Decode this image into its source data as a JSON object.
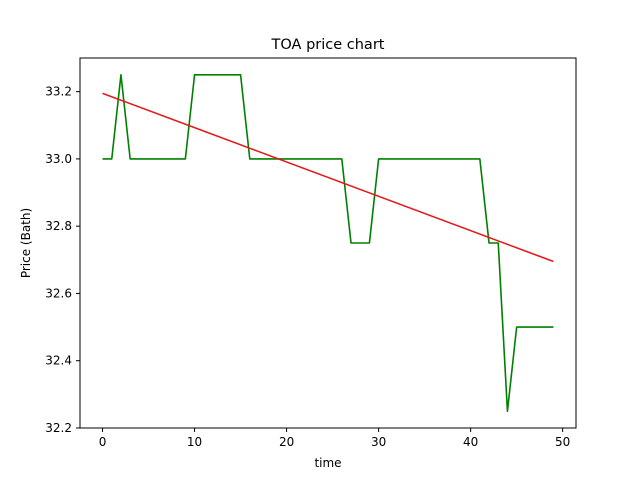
{
  "chart_data": {
    "type": "line",
    "title": "TOA price chart",
    "xlabel": "time",
    "ylabel": "Price (Bath)",
    "xlim": [
      -2.45,
      51.45
    ],
    "ylim": [
      32.2,
      33.3
    ],
    "xticks": [
      0,
      10,
      20,
      30,
      40,
      50
    ],
    "yticks": [
      32.2,
      32.4,
      32.6,
      32.8,
      33.0,
      33.2
    ],
    "ytick_labels": [
      "32.2",
      "32.4",
      "32.6",
      "32.8",
      "33.0",
      "33.2"
    ],
    "grid": false,
    "series": [
      {
        "color": "#008000",
        "x": [
          0,
          1,
          2,
          3,
          4,
          5,
          6,
          7,
          8,
          9,
          10,
          11,
          12,
          13,
          14,
          15,
          16,
          17,
          18,
          19,
          20,
          21,
          22,
          23,
          24,
          25,
          26,
          27,
          28,
          29,
          30,
          31,
          32,
          33,
          34,
          35,
          36,
          37,
          38,
          39,
          40,
          41,
          42,
          43,
          44,
          45,
          46,
          47,
          48,
          49
        ],
        "y": [
          33.0,
          33.0,
          33.25,
          33.0,
          33.0,
          33.0,
          33.0,
          33.0,
          33.0,
          33.0,
          33.25,
          33.25,
          33.25,
          33.25,
          33.25,
          33.25,
          33.0,
          33.0,
          33.0,
          33.0,
          33.0,
          33.0,
          33.0,
          33.0,
          33.0,
          33.0,
          33.0,
          32.75,
          32.75,
          32.75,
          33.0,
          33.0,
          33.0,
          33.0,
          33.0,
          33.0,
          33.0,
          33.0,
          33.0,
          33.0,
          33.0,
          33.0,
          32.75,
          32.75,
          32.25,
          32.5,
          32.5,
          32.5,
          32.5,
          32.5
        ]
      },
      {
        "color": "#e31a1c",
        "x": [
          0,
          49
        ],
        "y": [
          33.195,
          32.695
        ]
      }
    ]
  }
}
